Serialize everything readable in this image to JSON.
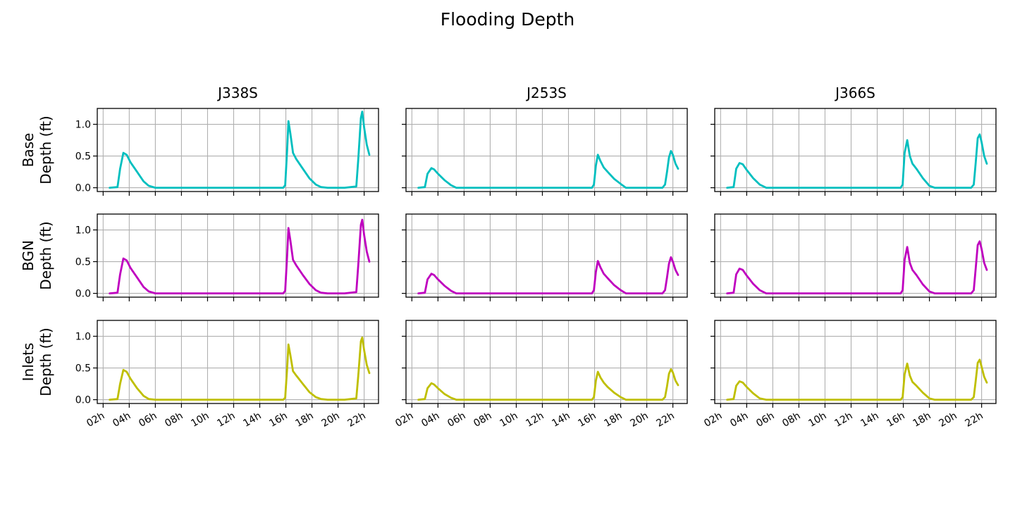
{
  "chart_data": {
    "type": "line",
    "title": "Flooding Depth",
    "x_unit": "hour",
    "x_ticks": [
      2,
      4,
      6,
      8,
      10,
      12,
      14,
      16,
      18,
      20,
      22
    ],
    "x_tick_labels": [
      "02h",
      "04h",
      "06h",
      "08h",
      "10h",
      "12h",
      "14h",
      "16h",
      "18h",
      "20h",
      "22h"
    ],
    "xlim": [
      1.55,
      23.1
    ],
    "ylim": [
      -0.06,
      1.25
    ],
    "y_ticks": [
      0.0,
      0.5,
      1.0
    ],
    "y_tick_labels": [
      "0.0",
      "0.5",
      "1.0"
    ],
    "grid": true,
    "columns": [
      "J338S",
      "J253S",
      "J366S"
    ],
    "rows": [
      {
        "name": "Base",
        "ylabel_line1": "Base",
        "ylabel_line2": "Depth (ft)",
        "color": "#00bfbf"
      },
      {
        "name": "BGN",
        "ylabel_line1": "BGN",
        "ylabel_line2": "Depth (ft)",
        "color": "#bf00bf"
      },
      {
        "name": "Inlets",
        "ylabel_line1": "Inlets",
        "ylabel_line2": "Depth (ft)",
        "color": "#bfbf00"
      }
    ],
    "panels": [
      {
        "row": "Base",
        "column": "J338S",
        "x": [
          2.5,
          3.1,
          3.3,
          3.55,
          3.8,
          4.1,
          4.6,
          5.1,
          5.5,
          6.0,
          8,
          10,
          12,
          14,
          15.8,
          15.95,
          16.1,
          16.2,
          16.35,
          16.55,
          16.8,
          17.3,
          17.8,
          18.3,
          18.7,
          19.2,
          20.5,
          21.4,
          21.55,
          21.75,
          21.85,
          22.0,
          22.2,
          22.4
        ],
        "y": [
          0.0,
          0.01,
          0.3,
          0.55,
          0.52,
          0.4,
          0.25,
          0.1,
          0.03,
          0.0,
          0.0,
          0.0,
          0.0,
          0.0,
          0.0,
          0.04,
          0.6,
          1.05,
          0.85,
          0.55,
          0.45,
          0.3,
          0.15,
          0.05,
          0.01,
          0.0,
          0.0,
          0.02,
          0.45,
          1.1,
          1.2,
          0.95,
          0.68,
          0.52
        ]
      },
      {
        "row": "Base",
        "column": "J253S",
        "x": [
          2.5,
          3.0,
          3.2,
          3.5,
          3.7,
          4.0,
          4.5,
          5.0,
          5.4,
          6,
          8,
          10,
          12,
          14,
          15.8,
          15.95,
          16.1,
          16.25,
          16.45,
          16.7,
          17.0,
          17.5,
          18.0,
          18.4,
          19,
          20,
          21.2,
          21.4,
          21.55,
          21.7,
          21.85,
          22.0,
          22.2,
          22.4
        ],
        "y": [
          0.0,
          0.01,
          0.22,
          0.31,
          0.29,
          0.22,
          0.12,
          0.04,
          0.0,
          0.0,
          0.0,
          0.0,
          0.0,
          0.0,
          0.0,
          0.05,
          0.35,
          0.52,
          0.42,
          0.32,
          0.25,
          0.14,
          0.06,
          0.0,
          0.0,
          0.0,
          0.0,
          0.05,
          0.25,
          0.48,
          0.58,
          0.52,
          0.38,
          0.3
        ]
      },
      {
        "row": "Base",
        "column": "J366S",
        "x": [
          2.5,
          3.0,
          3.2,
          3.45,
          3.7,
          4.0,
          4.5,
          5.0,
          5.5,
          6,
          8,
          10,
          12,
          14,
          15.8,
          15.95,
          16.1,
          16.3,
          16.5,
          16.7,
          17.0,
          17.5,
          18.0,
          18.4,
          19,
          20,
          21.2,
          21.4,
          21.55,
          21.7,
          21.85,
          22.0,
          22.2,
          22.4
        ],
        "y": [
          0.0,
          0.01,
          0.3,
          0.39,
          0.37,
          0.28,
          0.15,
          0.05,
          0.0,
          0.0,
          0.0,
          0.0,
          0.0,
          0.0,
          0.0,
          0.05,
          0.55,
          0.75,
          0.5,
          0.38,
          0.3,
          0.15,
          0.03,
          0.0,
          0.0,
          0.0,
          0.0,
          0.05,
          0.4,
          0.78,
          0.84,
          0.72,
          0.5,
          0.38
        ]
      },
      {
        "row": "BGN",
        "column": "J338S",
        "x": [
          2.5,
          3.1,
          3.3,
          3.55,
          3.8,
          4.1,
          4.6,
          5.1,
          5.5,
          6.0,
          8,
          10,
          12,
          14,
          15.8,
          15.95,
          16.1,
          16.2,
          16.35,
          16.55,
          16.8,
          17.3,
          17.8,
          18.3,
          18.7,
          19.2,
          20.5,
          21.4,
          21.55,
          21.75,
          21.85,
          22.0,
          22.2,
          22.4
        ],
        "y": [
          0.0,
          0.01,
          0.3,
          0.55,
          0.52,
          0.4,
          0.25,
          0.1,
          0.03,
          0.0,
          0.0,
          0.0,
          0.0,
          0.0,
          0.0,
          0.04,
          0.6,
          1.03,
          0.83,
          0.53,
          0.44,
          0.29,
          0.15,
          0.05,
          0.01,
          0.0,
          0.0,
          0.02,
          0.45,
          1.08,
          1.16,
          0.92,
          0.66,
          0.5
        ]
      },
      {
        "row": "BGN",
        "column": "J253S",
        "x": [
          2.5,
          3.0,
          3.2,
          3.5,
          3.7,
          4.0,
          4.5,
          5.0,
          5.4,
          6,
          8,
          10,
          12,
          14,
          15.8,
          15.95,
          16.1,
          16.25,
          16.45,
          16.7,
          17.0,
          17.5,
          18.0,
          18.4,
          19,
          20,
          21.2,
          21.4,
          21.55,
          21.7,
          21.85,
          22.0,
          22.2,
          22.4
        ],
        "y": [
          0.0,
          0.01,
          0.22,
          0.31,
          0.29,
          0.22,
          0.12,
          0.04,
          0.0,
          0.0,
          0.0,
          0.0,
          0.0,
          0.0,
          0.0,
          0.05,
          0.34,
          0.51,
          0.41,
          0.31,
          0.24,
          0.13,
          0.05,
          0.0,
          0.0,
          0.0,
          0.0,
          0.05,
          0.25,
          0.47,
          0.57,
          0.5,
          0.37,
          0.29
        ]
      },
      {
        "row": "BGN",
        "column": "J366S",
        "x": [
          2.5,
          3.0,
          3.2,
          3.45,
          3.7,
          4.0,
          4.5,
          5.0,
          5.5,
          6,
          8,
          10,
          12,
          14,
          15.8,
          15.95,
          16.1,
          16.3,
          16.5,
          16.7,
          17.0,
          17.5,
          18.0,
          18.4,
          19,
          20,
          21.2,
          21.4,
          21.55,
          21.7,
          21.85,
          22.0,
          22.2,
          22.4
        ],
        "y": [
          0.0,
          0.01,
          0.3,
          0.39,
          0.37,
          0.28,
          0.15,
          0.05,
          0.0,
          0.0,
          0.0,
          0.0,
          0.0,
          0.0,
          0.0,
          0.05,
          0.53,
          0.73,
          0.48,
          0.37,
          0.29,
          0.14,
          0.03,
          0.0,
          0.0,
          0.0,
          0.0,
          0.05,
          0.4,
          0.76,
          0.82,
          0.7,
          0.48,
          0.37
        ]
      },
      {
        "row": "Inlets",
        "column": "J338S",
        "x": [
          2.5,
          3.1,
          3.3,
          3.55,
          3.8,
          4.1,
          4.6,
          5.1,
          5.5,
          6.0,
          8,
          10,
          12,
          14,
          15.8,
          15.95,
          16.1,
          16.2,
          16.35,
          16.55,
          16.8,
          17.3,
          17.8,
          18.3,
          18.7,
          19.2,
          20.5,
          21.4,
          21.55,
          21.75,
          21.85,
          22.0,
          22.2,
          22.4
        ],
        "y": [
          0.0,
          0.01,
          0.25,
          0.47,
          0.44,
          0.33,
          0.18,
          0.06,
          0.01,
          0.0,
          0.0,
          0.0,
          0.0,
          0.0,
          0.0,
          0.03,
          0.5,
          0.87,
          0.7,
          0.45,
          0.38,
          0.25,
          0.12,
          0.04,
          0.01,
          0.0,
          0.0,
          0.02,
          0.38,
          0.92,
          0.98,
          0.78,
          0.55,
          0.42
        ]
      },
      {
        "row": "Inlets",
        "column": "J253S",
        "x": [
          2.5,
          3.0,
          3.2,
          3.5,
          3.7,
          4.0,
          4.5,
          5.0,
          5.4,
          6,
          8,
          10,
          12,
          14,
          15.8,
          15.95,
          16.1,
          16.25,
          16.45,
          16.7,
          17.0,
          17.5,
          18.0,
          18.4,
          19,
          20,
          21.2,
          21.4,
          21.55,
          21.7,
          21.85,
          22.0,
          22.2,
          22.4
        ],
        "y": [
          0.0,
          0.01,
          0.18,
          0.26,
          0.24,
          0.18,
          0.09,
          0.03,
          0.0,
          0.0,
          0.0,
          0.0,
          0.0,
          0.0,
          0.0,
          0.04,
          0.3,
          0.44,
          0.35,
          0.27,
          0.2,
          0.11,
          0.04,
          0.0,
          0.0,
          0.0,
          0.0,
          0.04,
          0.21,
          0.41,
          0.48,
          0.43,
          0.3,
          0.23
        ]
      },
      {
        "row": "Inlets",
        "column": "J366S",
        "x": [
          2.5,
          3.0,
          3.2,
          3.45,
          3.7,
          4.0,
          4.5,
          5.0,
          5.5,
          6,
          8,
          10,
          12,
          14,
          15.8,
          15.95,
          16.1,
          16.3,
          16.5,
          16.7,
          17.0,
          17.5,
          18.0,
          18.4,
          19,
          20,
          21.2,
          21.4,
          21.55,
          21.7,
          21.85,
          22.0,
          22.2,
          22.4
        ],
        "y": [
          0.0,
          0.01,
          0.22,
          0.29,
          0.27,
          0.2,
          0.1,
          0.02,
          0.0,
          0.0,
          0.0,
          0.0,
          0.0,
          0.0,
          0.0,
          0.04,
          0.4,
          0.57,
          0.38,
          0.28,
          0.22,
          0.11,
          0.02,
          0.0,
          0.0,
          0.0,
          0.0,
          0.04,
          0.3,
          0.58,
          0.63,
          0.52,
          0.36,
          0.27
        ]
      }
    ]
  }
}
